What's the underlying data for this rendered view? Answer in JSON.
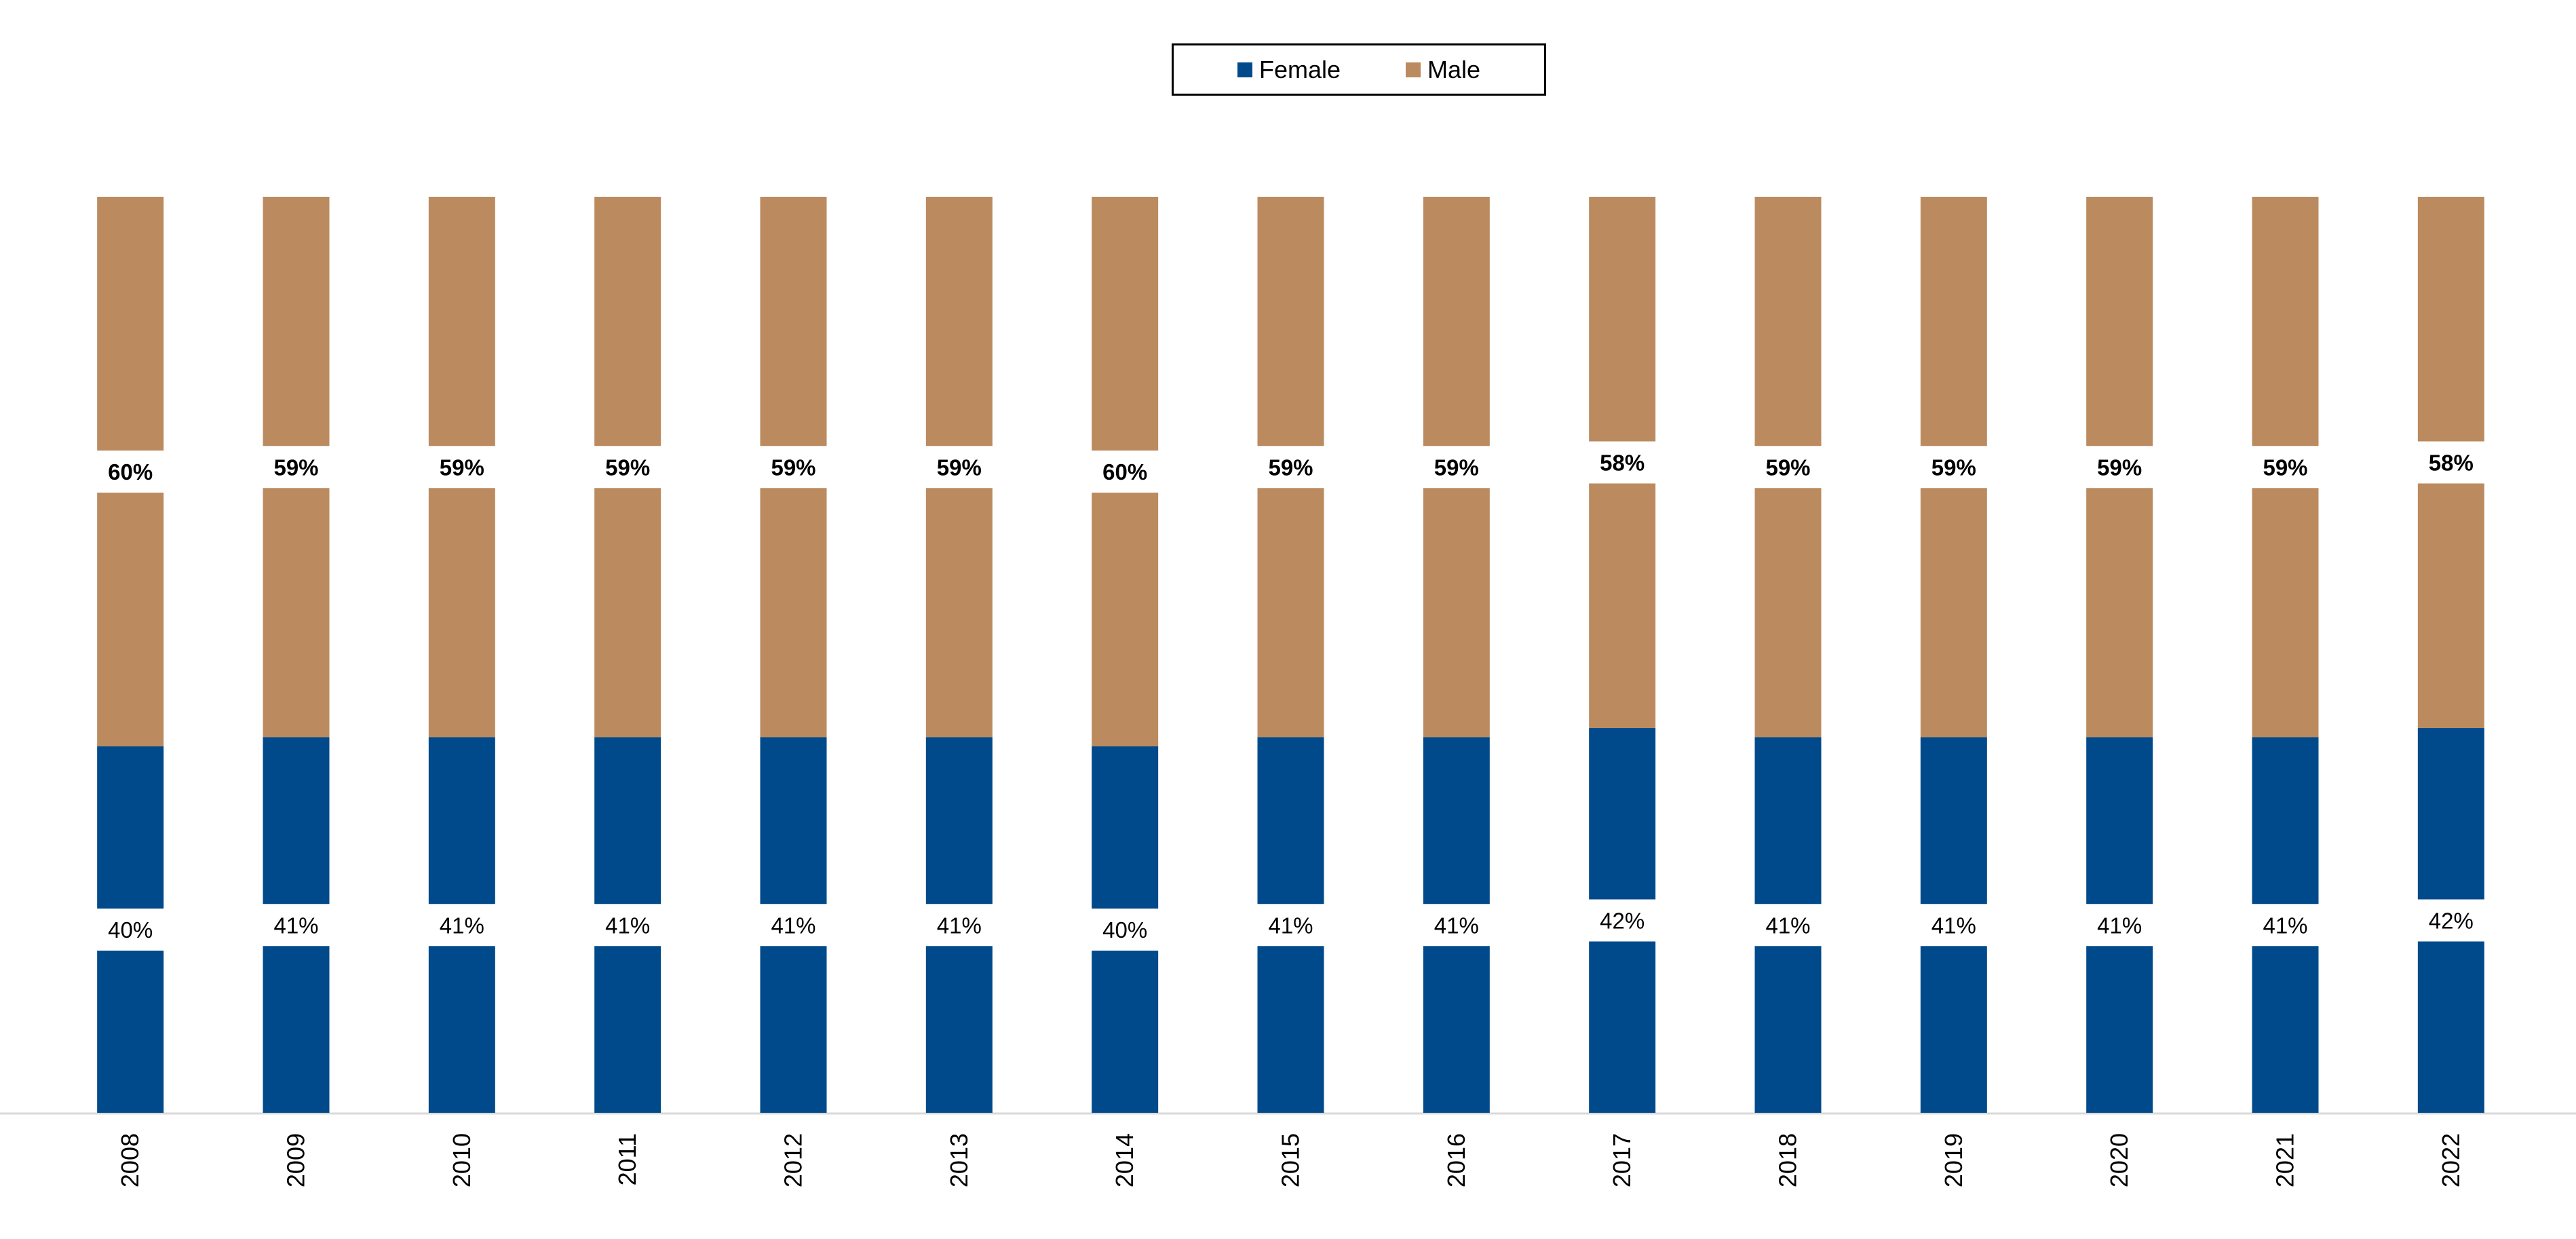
{
  "chart_data": {
    "type": "bar",
    "stacked": true,
    "categories": [
      "2008",
      "2009",
      "2010",
      "2011",
      "2012",
      "2013",
      "2014",
      "2015",
      "2016",
      "2017",
      "2018",
      "2019",
      "2020",
      "2021",
      "2022"
    ],
    "series": [
      {
        "name": "Female",
        "color": "#004A8B",
        "values": [
          40,
          41,
          41,
          41,
          41,
          41,
          40,
          41,
          41,
          42,
          41,
          41,
          41,
          41,
          42
        ],
        "labels": [
          "40%",
          "41%",
          "41%",
          "41%",
          "41%",
          "41%",
          "40%",
          "41%",
          "41%",
          "42%",
          "41%",
          "41%",
          "41%",
          "41%",
          "42%"
        ]
      },
      {
        "name": "Male",
        "color": "#BB8B5F",
        "values": [
          60,
          59,
          59,
          59,
          59,
          59,
          60,
          59,
          59,
          58,
          59,
          59,
          59,
          59,
          58
        ],
        "labels": [
          "60%",
          "59%",
          "59%",
          "59%",
          "59%",
          "59%",
          "60%",
          "59%",
          "59%",
          "58%",
          "59%",
          "59%",
          "59%",
          "59%",
          "58%"
        ]
      }
    ],
    "ylim": [
      0,
      100
    ],
    "legend": "top-center",
    "grid": false,
    "xtick_rotation": -90
  }
}
